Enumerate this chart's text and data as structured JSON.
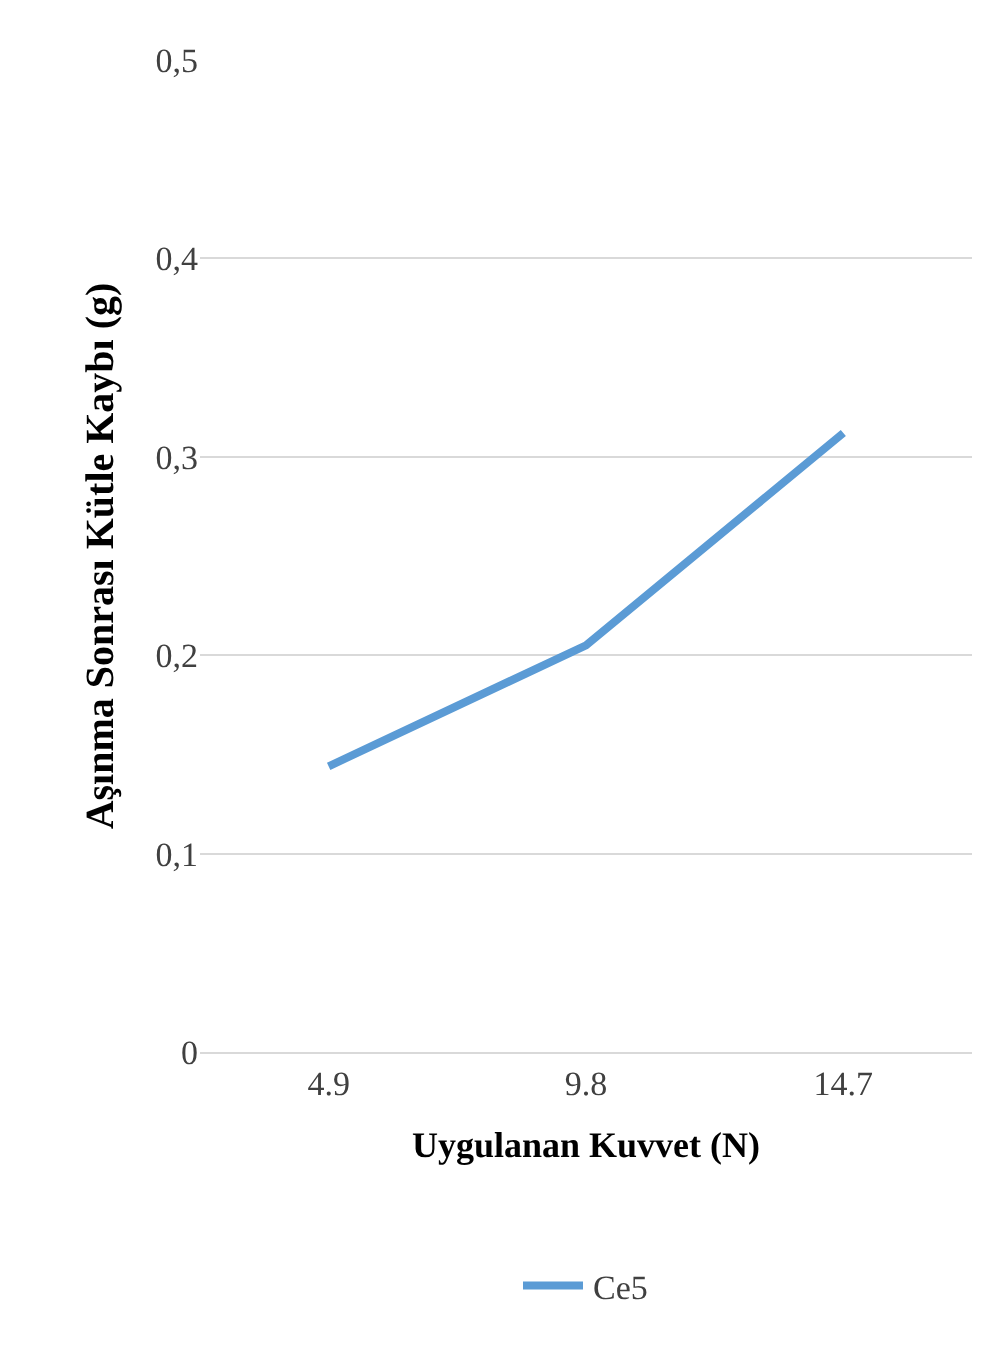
{
  "chart_data": {
    "type": "line",
    "xlabel": "Uygulanan Kuvvet (N)",
    "ylabel": "Aşınma Sonrası Kütle Kaybı (g)",
    "categories": [
      "4.9",
      "9.8",
      "14.7"
    ],
    "series": [
      {
        "name": "Ce5",
        "color": "#5b9bd5",
        "values": [
          0.144,
          0.205,
          0.312
        ]
      }
    ],
    "ylim": [
      0,
      0.5
    ],
    "yticks": [
      {
        "value": 0,
        "label": "0"
      },
      {
        "value": 0.1,
        "label": "0,1"
      },
      {
        "value": 0.2,
        "label": "0,2"
      },
      {
        "value": 0.3,
        "label": "0,3"
      },
      {
        "value": 0.4,
        "label": "0,4"
      },
      {
        "value": 0.5,
        "label": "0,5"
      }
    ],
    "grid": "y",
    "legend": "bottom",
    "marker": "none",
    "line_style": "solid"
  }
}
